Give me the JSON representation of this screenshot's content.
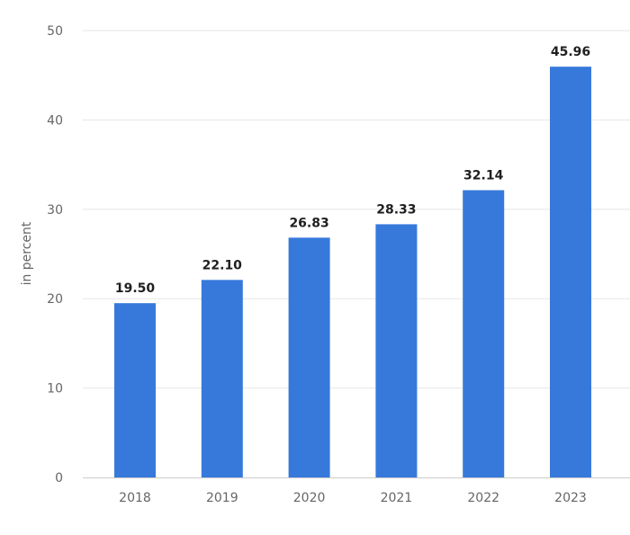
{
  "chart_data": {
    "type": "bar",
    "categories": [
      "2018",
      "2019",
      "2020",
      "2021",
      "2022",
      "2023"
    ],
    "values": [
      19.5,
      22.1,
      26.83,
      28.33,
      32.14,
      45.96
    ],
    "data_labels": [
      "19.50",
      "22.10",
      "26.83",
      "28.33",
      "32.14",
      "45.96"
    ],
    "title": "",
    "xlabel": "",
    "ylabel": "in percent",
    "ylim": [
      0,
      50
    ],
    "yticks": [
      0,
      10,
      20,
      30,
      40,
      50
    ],
    "grid": true,
    "bar_color": "#3779db"
  }
}
